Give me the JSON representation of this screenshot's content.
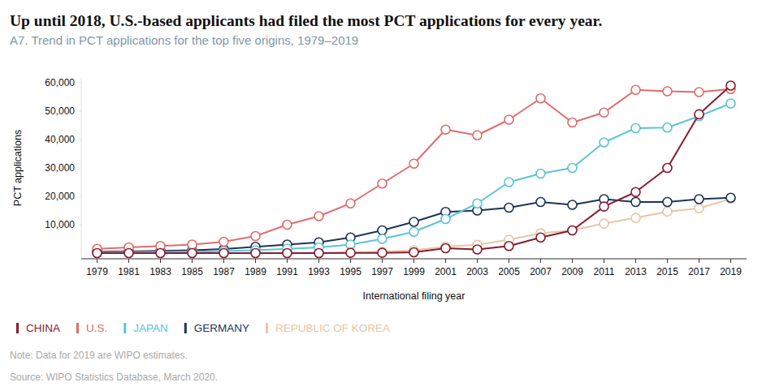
{
  "chart_data": {
    "type": "line",
    "title": "Up until 2018, U.S.-based applicants had filed the most PCT applications for every year.",
    "subtitle": "A7. Trend in PCT applications for the top five origins, 1979–2019",
    "x_label": "International filing year",
    "y_label": "PCT applications",
    "note": "Note: Data for 2019 are WIPO estimates.",
    "source": "Source: WIPO Statistics Database, March 2020.",
    "x": [
      1979,
      1981,
      1983,
      1985,
      1987,
      1989,
      1991,
      1993,
      1995,
      1997,
      1999,
      2001,
      2003,
      2005,
      2007,
      2009,
      2011,
      2013,
      2015,
      2017,
      2019
    ],
    "series": [
      {
        "name": "CHINA",
        "color": "#8b1a2e",
        "values": [
          0,
          0,
          0,
          0,
          0,
          0,
          0,
          0,
          100,
          100,
          300,
          1700,
          1300,
          2500,
          5500,
          8000,
          16400,
          21500,
          30000,
          48900,
          59000
        ]
      },
      {
        "name": "U.S.",
        "color": "#e06d6d",
        "values": [
          1500,
          2000,
          2500,
          3000,
          4000,
          6000,
          10000,
          13000,
          17500,
          24500,
          31500,
          43500,
          41500,
          47000,
          54500,
          46000,
          49500,
          57500,
          57000,
          56700,
          57800
        ]
      },
      {
        "name": "JAPAN",
        "color": "#5bc5d5",
        "values": [
          200,
          300,
          400,
          500,
          700,
          1000,
          1500,
          2000,
          3000,
          5000,
          7500,
          12000,
          17500,
          25000,
          28000,
          30000,
          39000,
          44000,
          44200,
          48200,
          52700
        ]
      },
      {
        "name": "GERMANY",
        "color": "#1d3557",
        "values": [
          500,
          600,
          800,
          1000,
          1400,
          2200,
          3000,
          3800,
          5500,
          8000,
          11000,
          14500,
          15000,
          16000,
          18000,
          17000,
          19000,
          18000,
          18000,
          19000,
          19500
        ]
      },
      {
        "name": "REPUBLIC OF KOREA",
        "color": "#e6c6a5",
        "values": [
          0,
          0,
          0,
          0,
          0,
          0,
          0,
          0,
          200,
          500,
          1000,
          2300,
          2900,
          4700,
          7000,
          8000,
          10400,
          12400,
          14600,
          15800,
          19100
        ]
      }
    ],
    "xlim": [
      1978,
      2020
    ],
    "xticks": [
      1979,
      1981,
      1983,
      1985,
      1987,
      1989,
      1991,
      1993,
      1995,
      1997,
      1999,
      2001,
      2003,
      2005,
      2007,
      2009,
      2011,
      2013,
      2015,
      2017,
      2019
    ],
    "ylim": [
      -2000,
      62000
    ],
    "yticks": [
      {
        "value": 10000,
        "label": "10,000"
      },
      {
        "value": 20000,
        "label": "20,000"
      },
      {
        "value": 30000,
        "label": "30,000"
      },
      {
        "value": 40000,
        "label": "40,000"
      },
      {
        "value": 50000,
        "label": "50,000"
      },
      {
        "value": 60000,
        "label": "60,000"
      }
    ],
    "grid": false,
    "legend": "bottom",
    "marker": "circle"
  }
}
